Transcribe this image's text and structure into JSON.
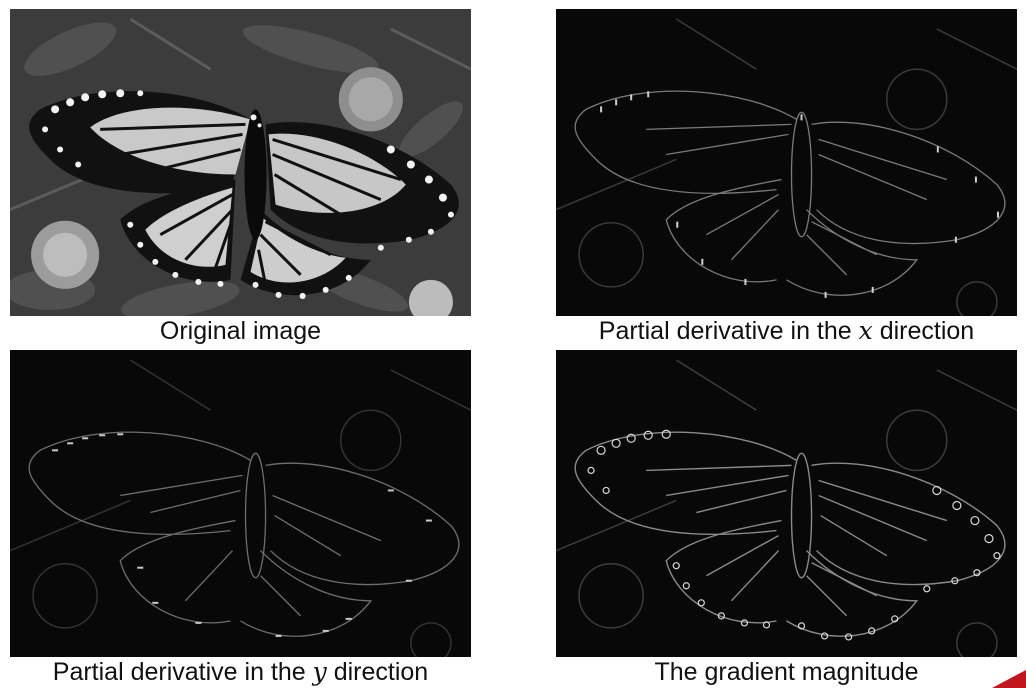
{
  "panels": {
    "original": {
      "caption": "Original image",
      "icon": "butterfly-grayscale-photo"
    },
    "dx": {
      "caption_pre": "Partial derivative in the ",
      "caption_var": "x",
      "caption_post": " direction",
      "icon": "butterfly-x-derivative"
    },
    "dy": {
      "caption_pre": "Partial derivative in the ",
      "caption_var": "y",
      "caption_post": " direction",
      "icon": "butterfly-y-derivative"
    },
    "gradient": {
      "caption": "The gradient magnitude",
      "icon": "butterfly-gradient-magnitude"
    }
  },
  "colors": {
    "accent": "#c0161c",
    "panel_bg": "#0b0b0b"
  }
}
